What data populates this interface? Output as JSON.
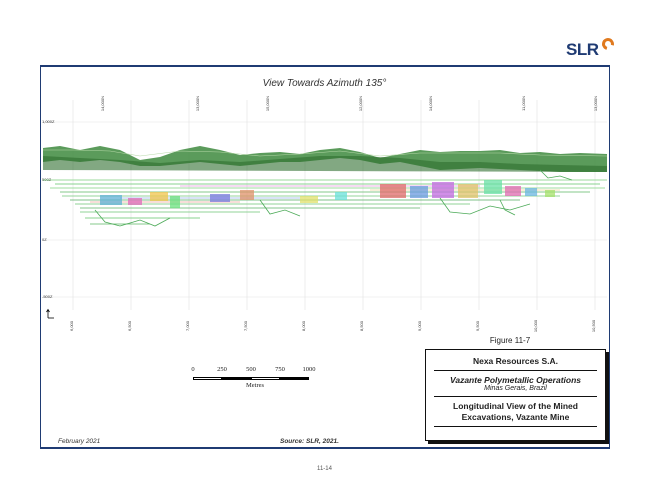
{
  "logo": {
    "text": "SLR"
  },
  "figure": {
    "view_title": "View Towards Azimuth 135°",
    "figure_number": "Figure 11-7",
    "elevation_labels": [
      "1,000Z",
      "500Z",
      "0Z",
      "-500Z"
    ],
    "top_coord_labels": [
      "14,000N",
      "13,000N",
      "15,000N",
      "12,000N",
      "14,000N",
      "11,000N",
      "13,000N"
    ],
    "bottom_coord_labels": [
      "6,000",
      "6,500",
      "7,000",
      "7,500",
      "8,000",
      "8,500",
      "9,000",
      "9,500",
      "10,000",
      "10,500"
    ]
  },
  "scale_bar": {
    "ticks": [
      "0",
      "250",
      "500",
      "750",
      "1000"
    ],
    "unit": "Metres"
  },
  "title_block": {
    "company": "Nexa Resources S.A.",
    "project": "Vazante Polymetallic Operations",
    "location": "Minas Gerais, Brazil",
    "title_line1": "Longitudinal View of the Mined",
    "title_line2": "Excavations, Vazante Mine"
  },
  "footer": {
    "date": "February 2021",
    "source": "Source: SLR, 2021.",
    "page_number": "11-14"
  },
  "colors": {
    "frame": "#1f3b73",
    "logo_accent": "#e07a1f",
    "terrain": "#3e8a3e"
  }
}
